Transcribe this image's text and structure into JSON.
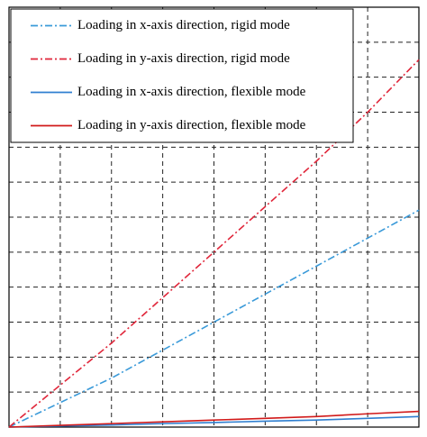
{
  "chart_data": {
    "type": "line",
    "x": [
      0,
      1,
      2,
      3,
      4,
      5,
      6,
      7,
      8
    ],
    "xlim": [
      0,
      8
    ],
    "ylim": [
      0,
      12
    ],
    "xticks": [
      0,
      1,
      2,
      3,
      4,
      5,
      6,
      7,
      8
    ],
    "yticks": [
      0,
      1,
      2,
      3,
      4,
      5,
      6,
      7,
      8,
      9,
      10,
      11,
      12
    ],
    "grid": true,
    "legend": "upper left",
    "series": [
      {
        "name": "Loading in x-axis direction, rigid mode",
        "color": "#3a9ad9",
        "style": "dashdot",
        "values": [
          0,
          0.7,
          1.4,
          2.2,
          3.0,
          3.8,
          4.6,
          5.4,
          6.2
        ]
      },
      {
        "name": "Loading in y-axis direction, rigid mode",
        "color": "#e0263a",
        "style": "dashdot",
        "values": [
          0,
          1.2,
          2.4,
          3.7,
          5.0,
          6.3,
          7.6,
          9.0,
          10.5
        ]
      },
      {
        "name": "Loading in x-axis direction, flexible mode",
        "color": "#2f7fd0",
        "style": "solid",
        "values": [
          0,
          0.03,
          0.06,
          0.1,
          0.13,
          0.17,
          0.2,
          0.25,
          0.3
        ]
      },
      {
        "name": "Loading in y-axis direction, flexible mode",
        "color": "#d11a1a",
        "style": "solid",
        "values": [
          0,
          0.05,
          0.1,
          0.15,
          0.2,
          0.25,
          0.3,
          0.38,
          0.45
        ]
      }
    ]
  }
}
